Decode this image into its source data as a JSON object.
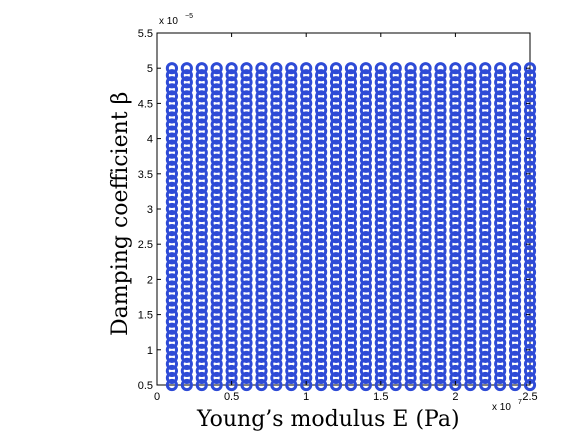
{
  "chart_data": {
    "type": "scatter",
    "title": "",
    "xlabel": "Young’s modulus E (Pa)",
    "ylabel": "Damping coefficient β",
    "x_multiplier_label": "x 10",
    "x_multiplier_exp": "7",
    "y_multiplier_label": "x 10",
    "y_multiplier_exp": "−5",
    "xlim": [
      0,
      2.5
    ],
    "ylim": [
      0.5,
      5.5
    ],
    "xticks": [
      "0",
      "0.5",
      "1",
      "1.5",
      "2",
      "2.5"
    ],
    "yticks": [
      "0.5",
      "1",
      "1.5",
      "2",
      "2.5",
      "3",
      "3.5",
      "4",
      "4.5",
      "5",
      "5.5"
    ],
    "grid": false,
    "series": [
      {
        "marker": "circle",
        "color": "#2e4bd6",
        "x_range": [
          0.1,
          2.5
        ],
        "x_step": 0.1,
        "y_range": [
          0.5,
          5.0
        ],
        "y_step": 0.1
      }
    ]
  }
}
